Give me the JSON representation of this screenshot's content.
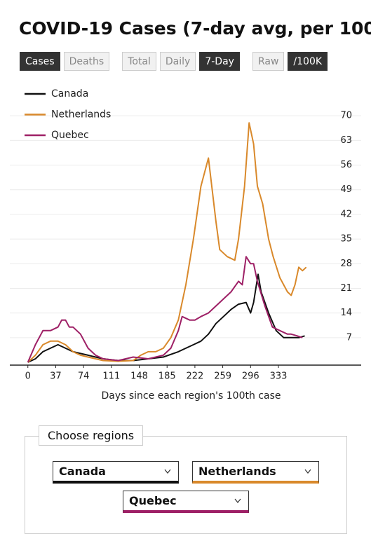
{
  "header": {
    "title": "COVID-19 Cases (7-day avg, per 100"
  },
  "buttons": [
    [
      {
        "label": "Cases",
        "active": true
      },
      {
        "label": "Deaths",
        "active": false
      }
    ],
    [
      {
        "label": "Total",
        "active": false
      },
      {
        "label": "Daily",
        "active": false
      },
      {
        "label": "7-Day",
        "active": true
      }
    ],
    [
      {
        "label": "Raw",
        "active": false
      },
      {
        "label": "/100K",
        "active": true
      }
    ]
  ],
  "chart_data": {
    "type": "line",
    "x_label": "Days since each region's 100th case",
    "xlim": [
      -24,
      443
    ],
    "xticks": [
      0,
      37,
      74,
      111,
      148,
      185,
      222,
      259,
      296,
      333
    ],
    "ylim": [
      0,
      78
    ],
    "yticks": [
      7,
      14,
      21,
      28,
      35,
      42,
      49,
      56,
      63,
      70
    ],
    "grid": true,
    "series": [
      {
        "name": "Canada",
        "color": "#111111",
        "x": [
          0,
          10,
          20,
          30,
          40,
          50,
          60,
          70,
          80,
          90,
          100,
          120,
          140,
          160,
          180,
          200,
          210,
          220,
          230,
          240,
          250,
          260,
          270,
          280,
          290,
          296,
          300,
          306,
          310,
          320,
          330,
          340,
          350,
          360,
          368
        ],
        "values": [
          0,
          1,
          3,
          4,
          5,
          4,
          3,
          2.5,
          2,
          1.5,
          1,
          0.5,
          0.5,
          1,
          1.5,
          3,
          4,
          5,
          6,
          8,
          11,
          13,
          15,
          16.5,
          17,
          14,
          17,
          25,
          20,
          14,
          9,
          7,
          7,
          7,
          7.5
        ]
      },
      {
        "name": "Netherlands",
        "color": "#d9892b",
        "x": [
          0,
          10,
          20,
          30,
          40,
          50,
          60,
          70,
          80,
          90,
          100,
          120,
          140,
          150,
          160,
          170,
          180,
          190,
          200,
          210,
          220,
          230,
          240,
          250,
          255,
          265,
          275,
          280,
          288,
          294,
          300,
          305,
          312,
          320,
          326,
          335,
          345,
          350,
          355,
          360,
          365,
          370
        ],
        "values": [
          0,
          2,
          5,
          6,
          6,
          5,
          3,
          2,
          1.5,
          1,
          0.5,
          0.3,
          0.5,
          2,
          3,
          3,
          4,
          7,
          12,
          22,
          35,
          50,
          58,
          40,
          32,
          30,
          29,
          35,
          50,
          68,
          62,
          50,
          45,
          35,
          30,
          24,
          20,
          19,
          22,
          27,
          26,
          27
        ]
      },
      {
        "name": "Quebec",
        "color": "#9e2066",
        "x": [
          0,
          10,
          20,
          30,
          40,
          45,
          50,
          55,
          60,
          70,
          80,
          90,
          100,
          120,
          140,
          160,
          180,
          190,
          200,
          205,
          215,
          222,
          230,
          240,
          250,
          260,
          270,
          280,
          285,
          290,
          296,
          300,
          305,
          315,
          325,
          335,
          345,
          350,
          358,
          365
        ],
        "values": [
          0,
          5,
          9,
          9,
          10,
          12,
          12,
          10,
          10,
          8,
          4,
          2,
          1,
          0.5,
          1.5,
          1,
          2,
          4,
          9,
          13,
          12,
          12,
          13,
          14,
          16,
          18,
          20,
          23,
          22,
          30,
          28,
          28,
          23,
          16,
          10,
          9,
          8,
          8,
          7.5,
          7
        ]
      }
    ]
  },
  "region_picker": {
    "legend": "Choose regions",
    "selections": [
      "Canada",
      "Netherlands",
      "Quebec"
    ]
  }
}
